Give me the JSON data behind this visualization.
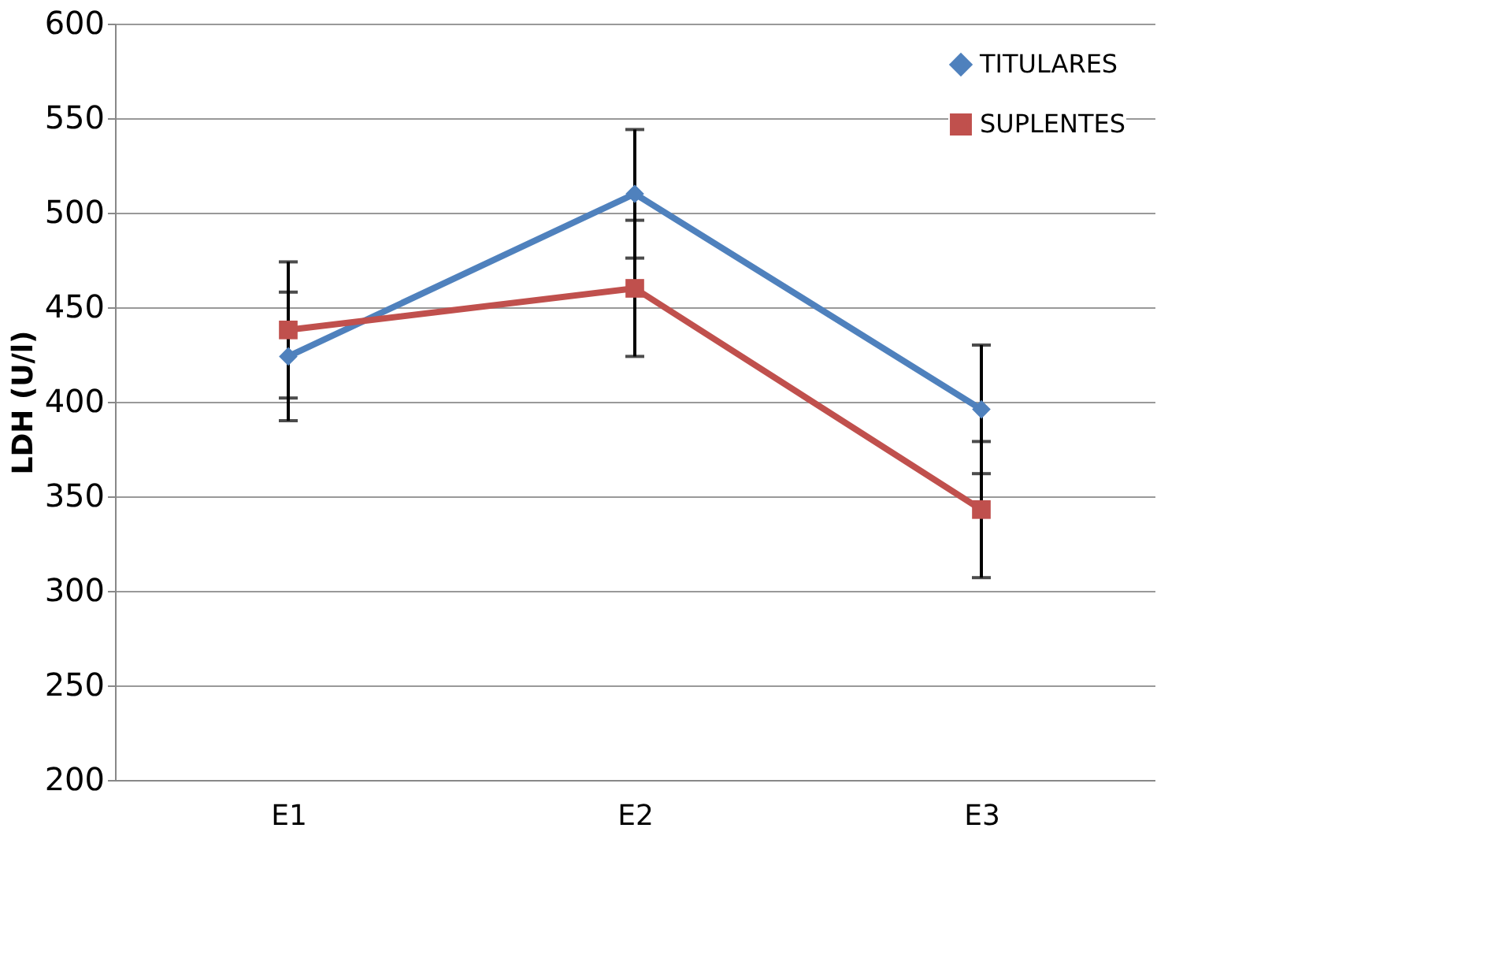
{
  "chart_data": {
    "type": "line",
    "ylabel": "LDH (U/l)",
    "categories": [
      "E1",
      "E2",
      "E3"
    ],
    "series": [
      {
        "name": "TITULARES",
        "color": "#4f81bd",
        "marker": "diamond",
        "values": [
          424,
          510,
          396
        ],
        "errors": [
          34,
          34,
          34
        ]
      },
      {
        "name": "SUPLENTES",
        "color": "#c0504d",
        "marker": "square",
        "values": [
          438,
          460,
          343
        ],
        "errors": [
          36,
          36,
          36
        ]
      }
    ],
    "ylim": [
      200,
      600
    ],
    "yticks": [
      200,
      250,
      300,
      350,
      400,
      450,
      500,
      550,
      600
    ],
    "grid": "y",
    "legend": "top right",
    "line_style": "solid"
  }
}
